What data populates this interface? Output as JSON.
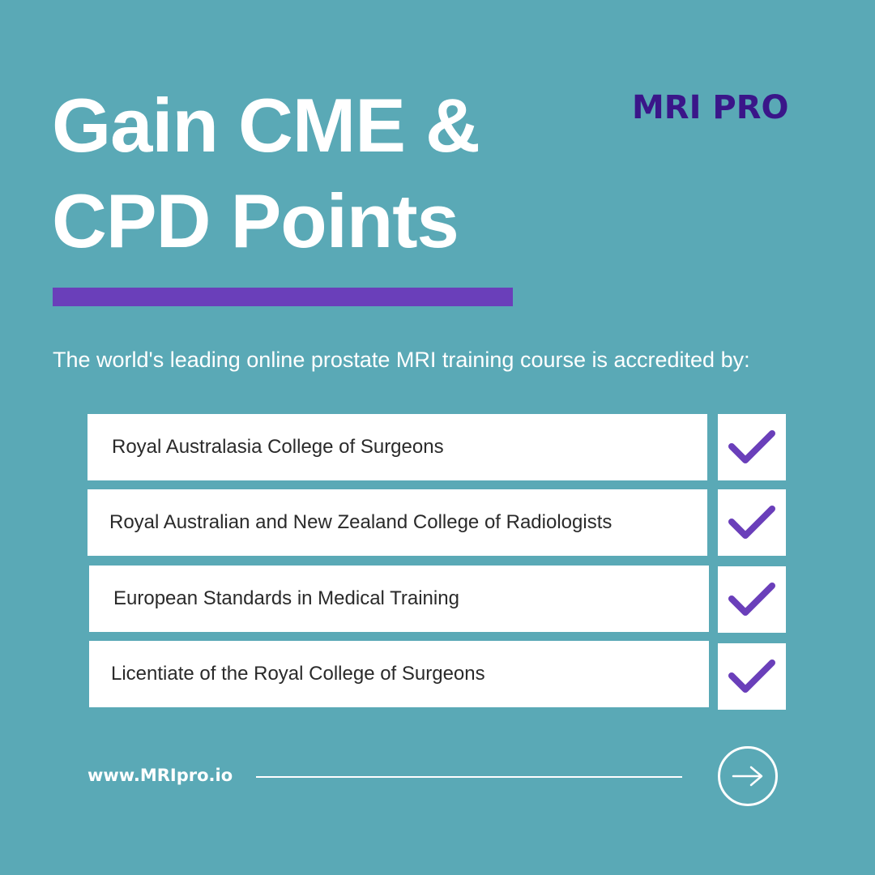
{
  "headline": {
    "line1": "Gain CME &",
    "line2": "CPD Points"
  },
  "brand": {
    "logo_text": "MRI PRO"
  },
  "intro_text": "The world's leading online prostate MRI training course is accredited by:",
  "accreditations": [
    {
      "label": "Royal Australasia College of Surgeons",
      "status_icon": "check-icon"
    },
    {
      "label": "Royal Australian and New Zealand College of Radiologists",
      "status_icon": "check-icon"
    },
    {
      "label": "European Standards in Medical Training",
      "status_icon": "check-icon"
    },
    {
      "label": "Licentiate of the Royal College of Surgeons",
      "status_icon": "check-icon"
    }
  ],
  "footer": {
    "website": "www.MRIpro.io",
    "next_icon": "arrow-right-icon"
  },
  "colors": {
    "background": "#5aa9b6",
    "accent": "#6a3fba",
    "logo": "#3a1689",
    "card": "#ffffff"
  }
}
